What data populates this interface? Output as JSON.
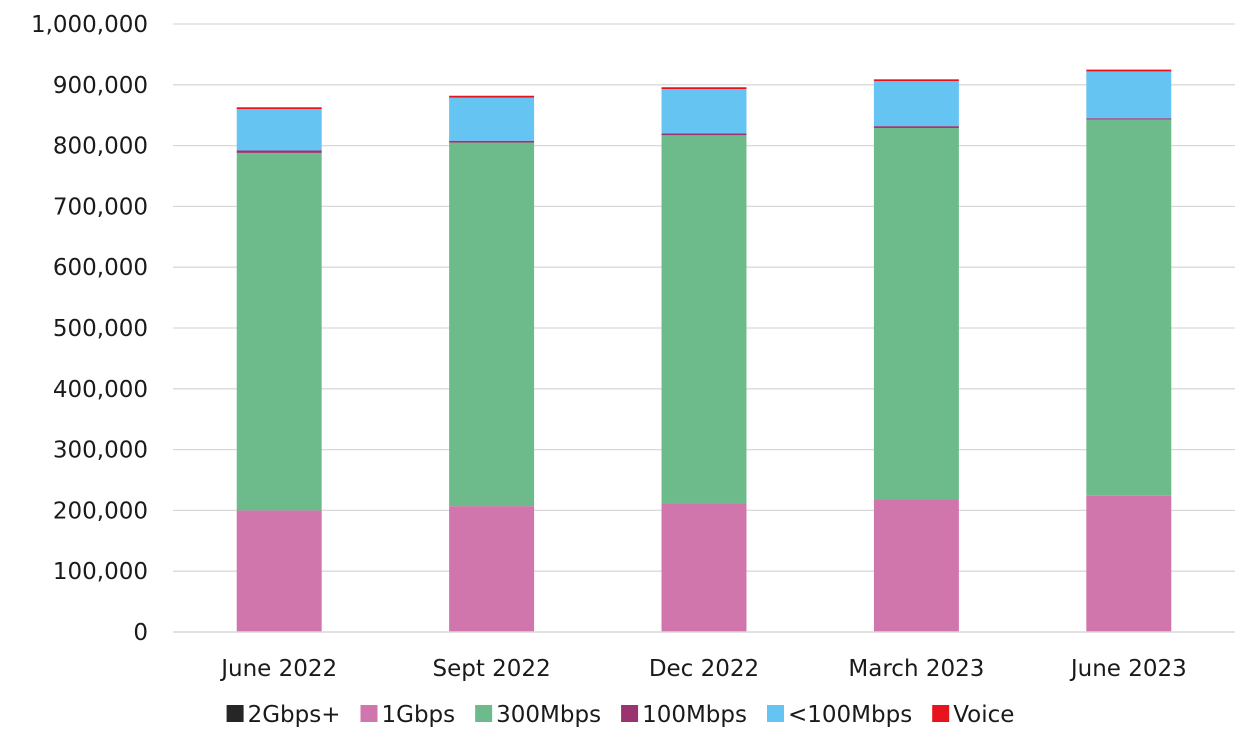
{
  "chart_data": {
    "type": "bar",
    "stacked": true,
    "title": "",
    "xlabel": "",
    "ylabel": "",
    "ylim": [
      0,
      1000000
    ],
    "yticks": [
      "0",
      "100,000",
      "200,000",
      "300,000",
      "400,000",
      "500,000",
      "600,000",
      "700,000",
      "800,000",
      "900,000",
      "1,000,000"
    ],
    "ytick_values": [
      0,
      100000,
      200000,
      300000,
      400000,
      500000,
      600000,
      700000,
      800000,
      900000,
      1000000
    ],
    "grid": true,
    "legend_position": "bottom",
    "categories": [
      "June 2022",
      "Sept 2022",
      "Dec 2022",
      "March 2023",
      "June 2023"
    ],
    "series": [
      {
        "name": "2Gbps+",
        "color": "#262626",
        "values": [
          0,
          0,
          0,
          0,
          0
        ]
      },
      {
        "name": "1Gbps",
        "color": "#d175ad",
        "values": [
          200000,
          207000,
          212000,
          218000,
          224000
        ]
      },
      {
        "name": "300Mbps",
        "color": "#6dbb8a",
        "values": [
          588000,
          598000,
          605000,
          611000,
          619000
        ]
      },
      {
        "name": "100Mbps",
        "color": "#9b3371",
        "values": [
          4000,
          3000,
          3000,
          3000,
          2000
        ]
      },
      {
        "name": "<100Mbps",
        "color": "#65c4f2",
        "values": [
          68000,
          71000,
          73000,
          74000,
          77000
        ]
      },
      {
        "name": "Voice",
        "color": "#e8141d",
        "values": [
          3000,
          3000,
          3000,
          3000,
          3000
        ]
      }
    ]
  }
}
